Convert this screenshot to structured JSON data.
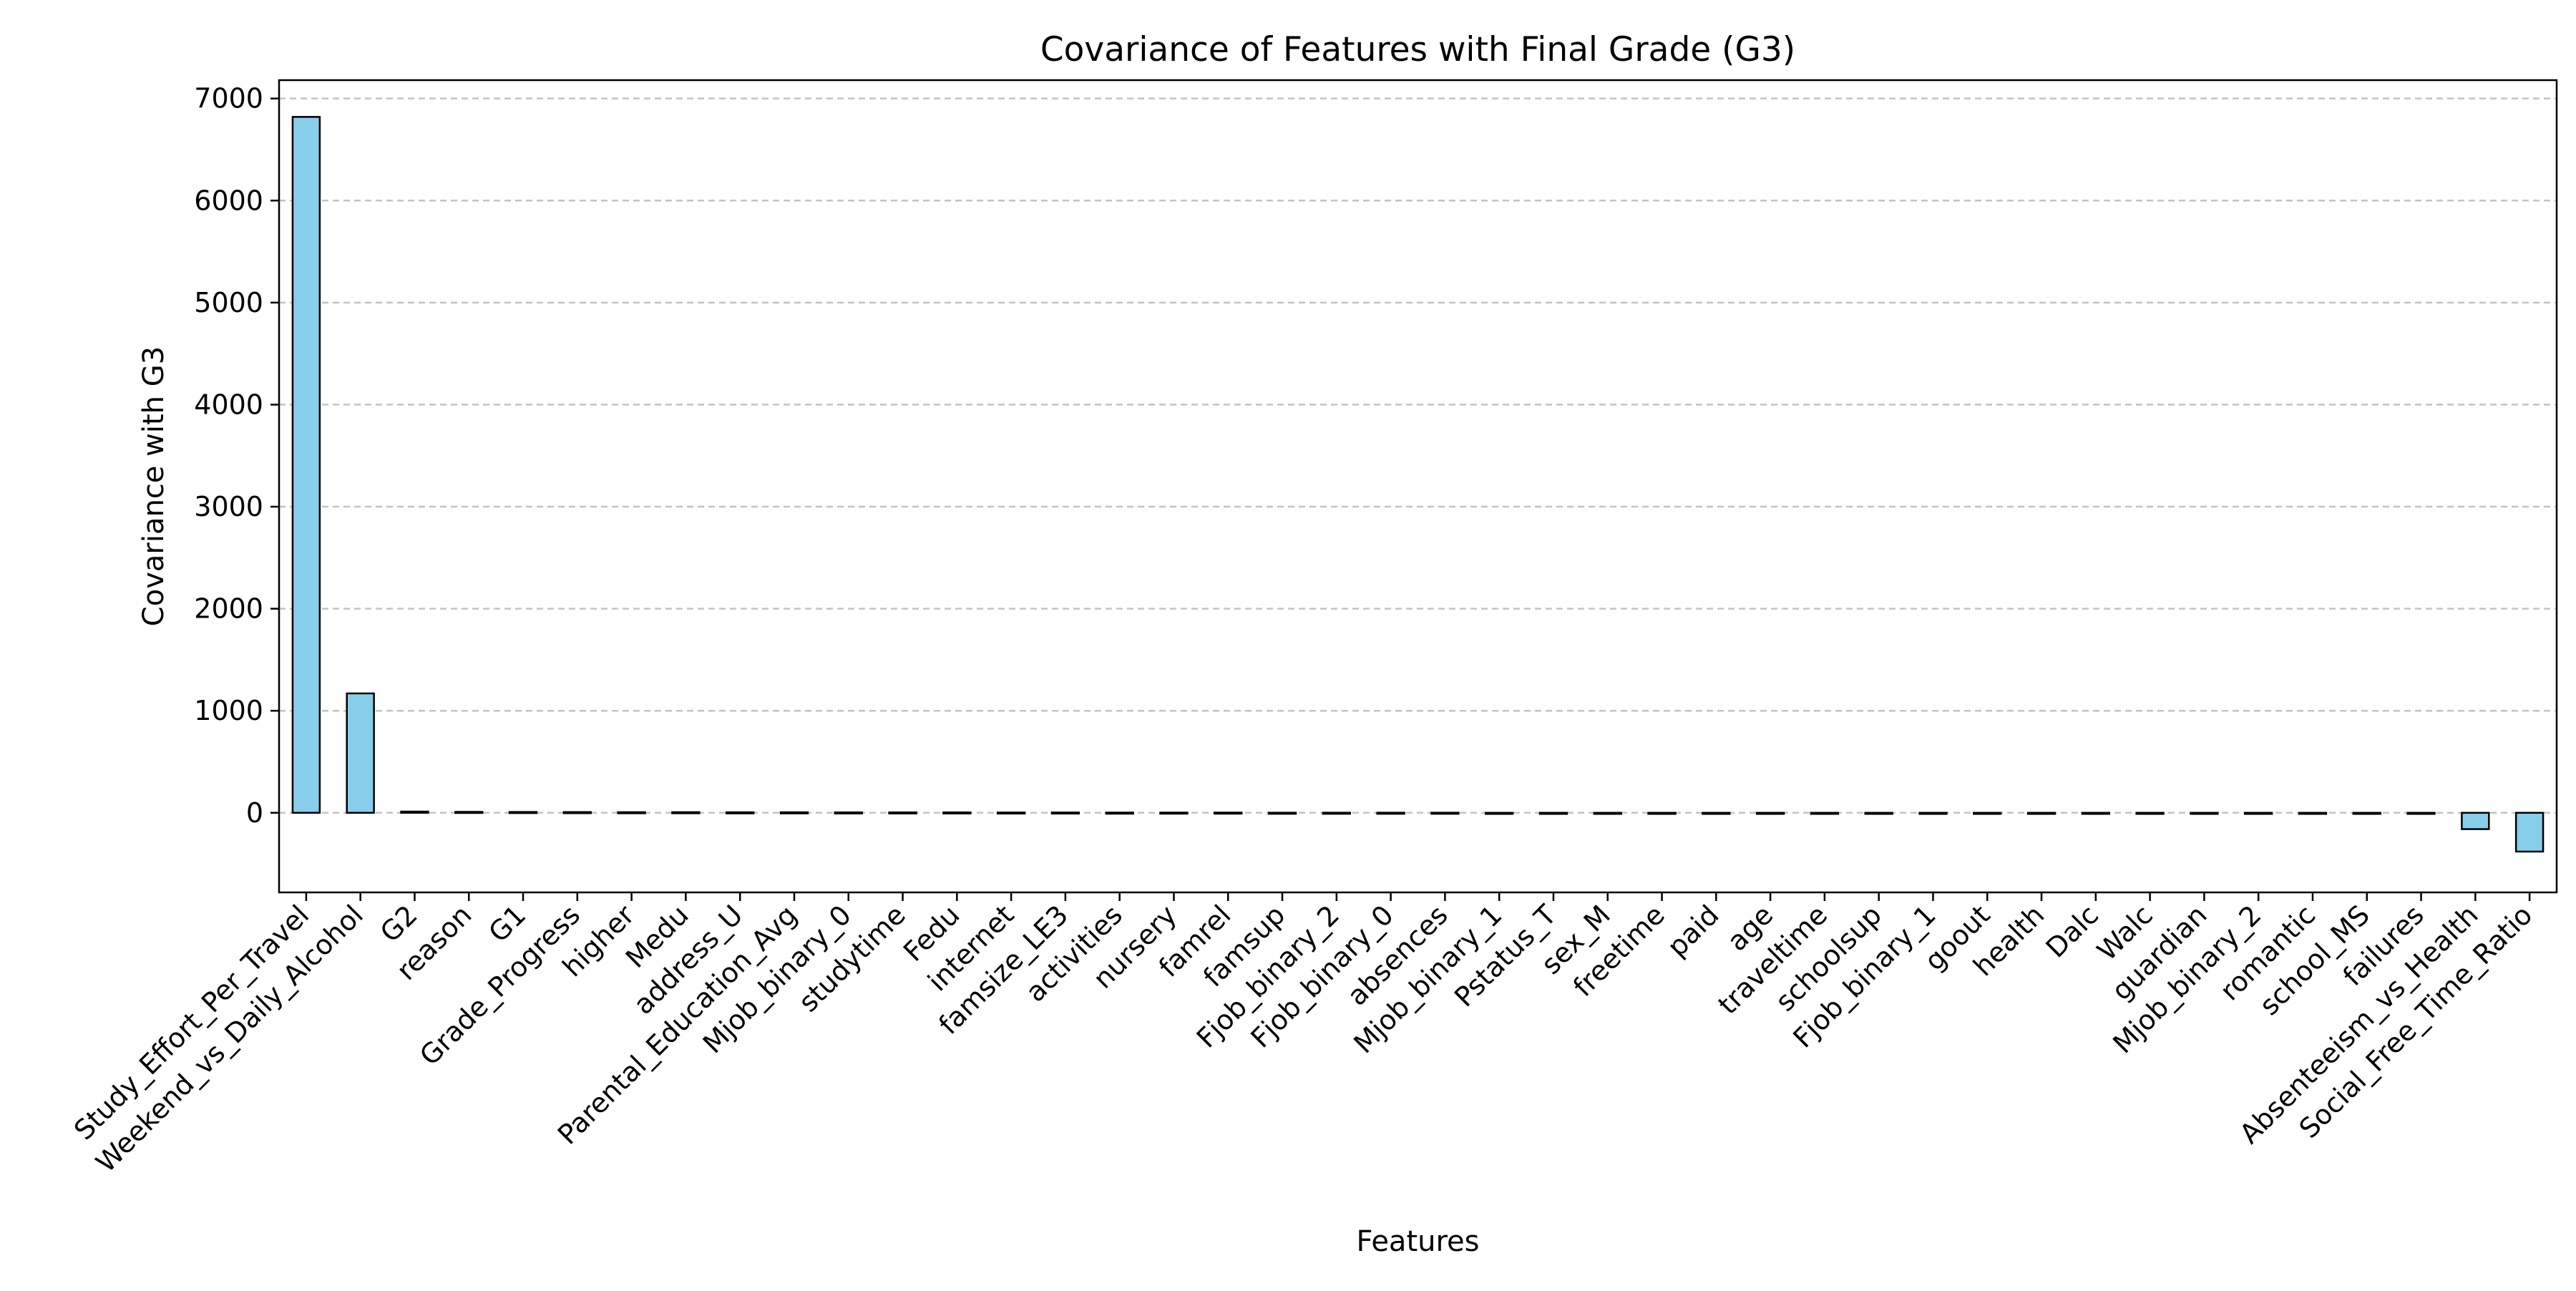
{
  "chart_data": {
    "type": "bar",
    "title": "Covariance of Features with Final Grade (G3)",
    "xlabel": "Features",
    "ylabel": "Covariance with G3",
    "ylim": [
      -780,
      7180
    ],
    "yticks": [
      0,
      1000,
      2000,
      3000,
      4000,
      5000,
      6000,
      7000
    ],
    "grid": "y-dashed",
    "categories": [
      "Study_Effort_Per_Travel",
      "Weekend_vs_Daily_Alcohol",
      "G2",
      "reason",
      "G1",
      "Grade_Progress",
      "higher",
      "Medu",
      "address_U",
      "Parental_Education_Avg",
      "Mjob_binary_0",
      "studytime",
      "Fedu",
      "internet",
      "famsize_LE3",
      "activities",
      "nursery",
      "famrel",
      "famsup",
      "Fjob_binary_2",
      "Fjob_binary_0",
      "absences",
      "Mjob_binary_1",
      "Pstatus_T",
      "sex_M",
      "freetime",
      "paid",
      "age",
      "traveltime",
      "schoolsup",
      "Fjob_binary_1",
      "goout",
      "health",
      "Dalc",
      "Walc",
      "guardian",
      "Mjob_binary_2",
      "romantic",
      "school_MS",
      "failures",
      "Absenteeism_vs_Health",
      "Social_Free_Time_Ratio"
    ],
    "values": [
      6820,
      1170,
      12,
      9,
      8,
      7,
      6,
      6,
      5,
      5,
      4,
      4,
      4,
      3,
      3,
      2,
      2,
      2,
      1,
      1,
      1,
      1,
      0,
      0,
      0,
      0,
      0,
      -1,
      -1,
      -1,
      -1,
      -2,
      -2,
      -2,
      -3,
      -3,
      -4,
      -5,
      -6,
      -8,
      -160,
      -380
    ],
    "colors": {
      "bar_fill": "#87ceeb",
      "bar_edge": "#000000",
      "grid": "#c4c4c4"
    }
  }
}
